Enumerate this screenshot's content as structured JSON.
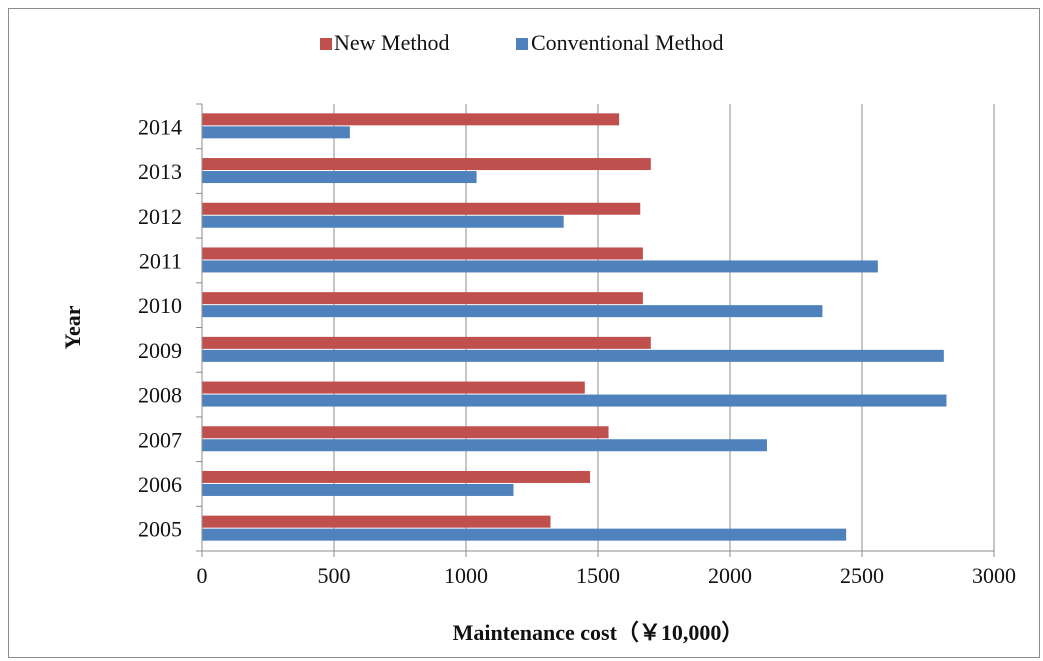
{
  "chart_data": {
    "type": "bar",
    "orientation": "horizontal",
    "categories": [
      "2005",
      "2006",
      "2007",
      "2008",
      "2009",
      "2010",
      "2011",
      "2012",
      "2013",
      "2014"
    ],
    "series": [
      {
        "name": "New Method",
        "color": "#c0504d",
        "values": [
          1320,
          1470,
          1540,
          1450,
          1700,
          1670,
          1670,
          1660,
          1700,
          1580
        ]
      },
      {
        "name": "Conventional Method",
        "color": "#4f81bd",
        "values": [
          2440,
          1180,
          2140,
          2820,
          2810,
          2350,
          2560,
          1370,
          1040,
          560
        ]
      }
    ],
    "xlabel": "Maintenance cost（￥10,000）",
    "ylabel": "Year",
    "xlim": [
      0,
      3000
    ],
    "xticks": [
      "0",
      "500",
      "1000",
      "1500",
      "2000",
      "2500",
      "3000"
    ],
    "grid": "vertical",
    "legend_position": "top-center"
  }
}
